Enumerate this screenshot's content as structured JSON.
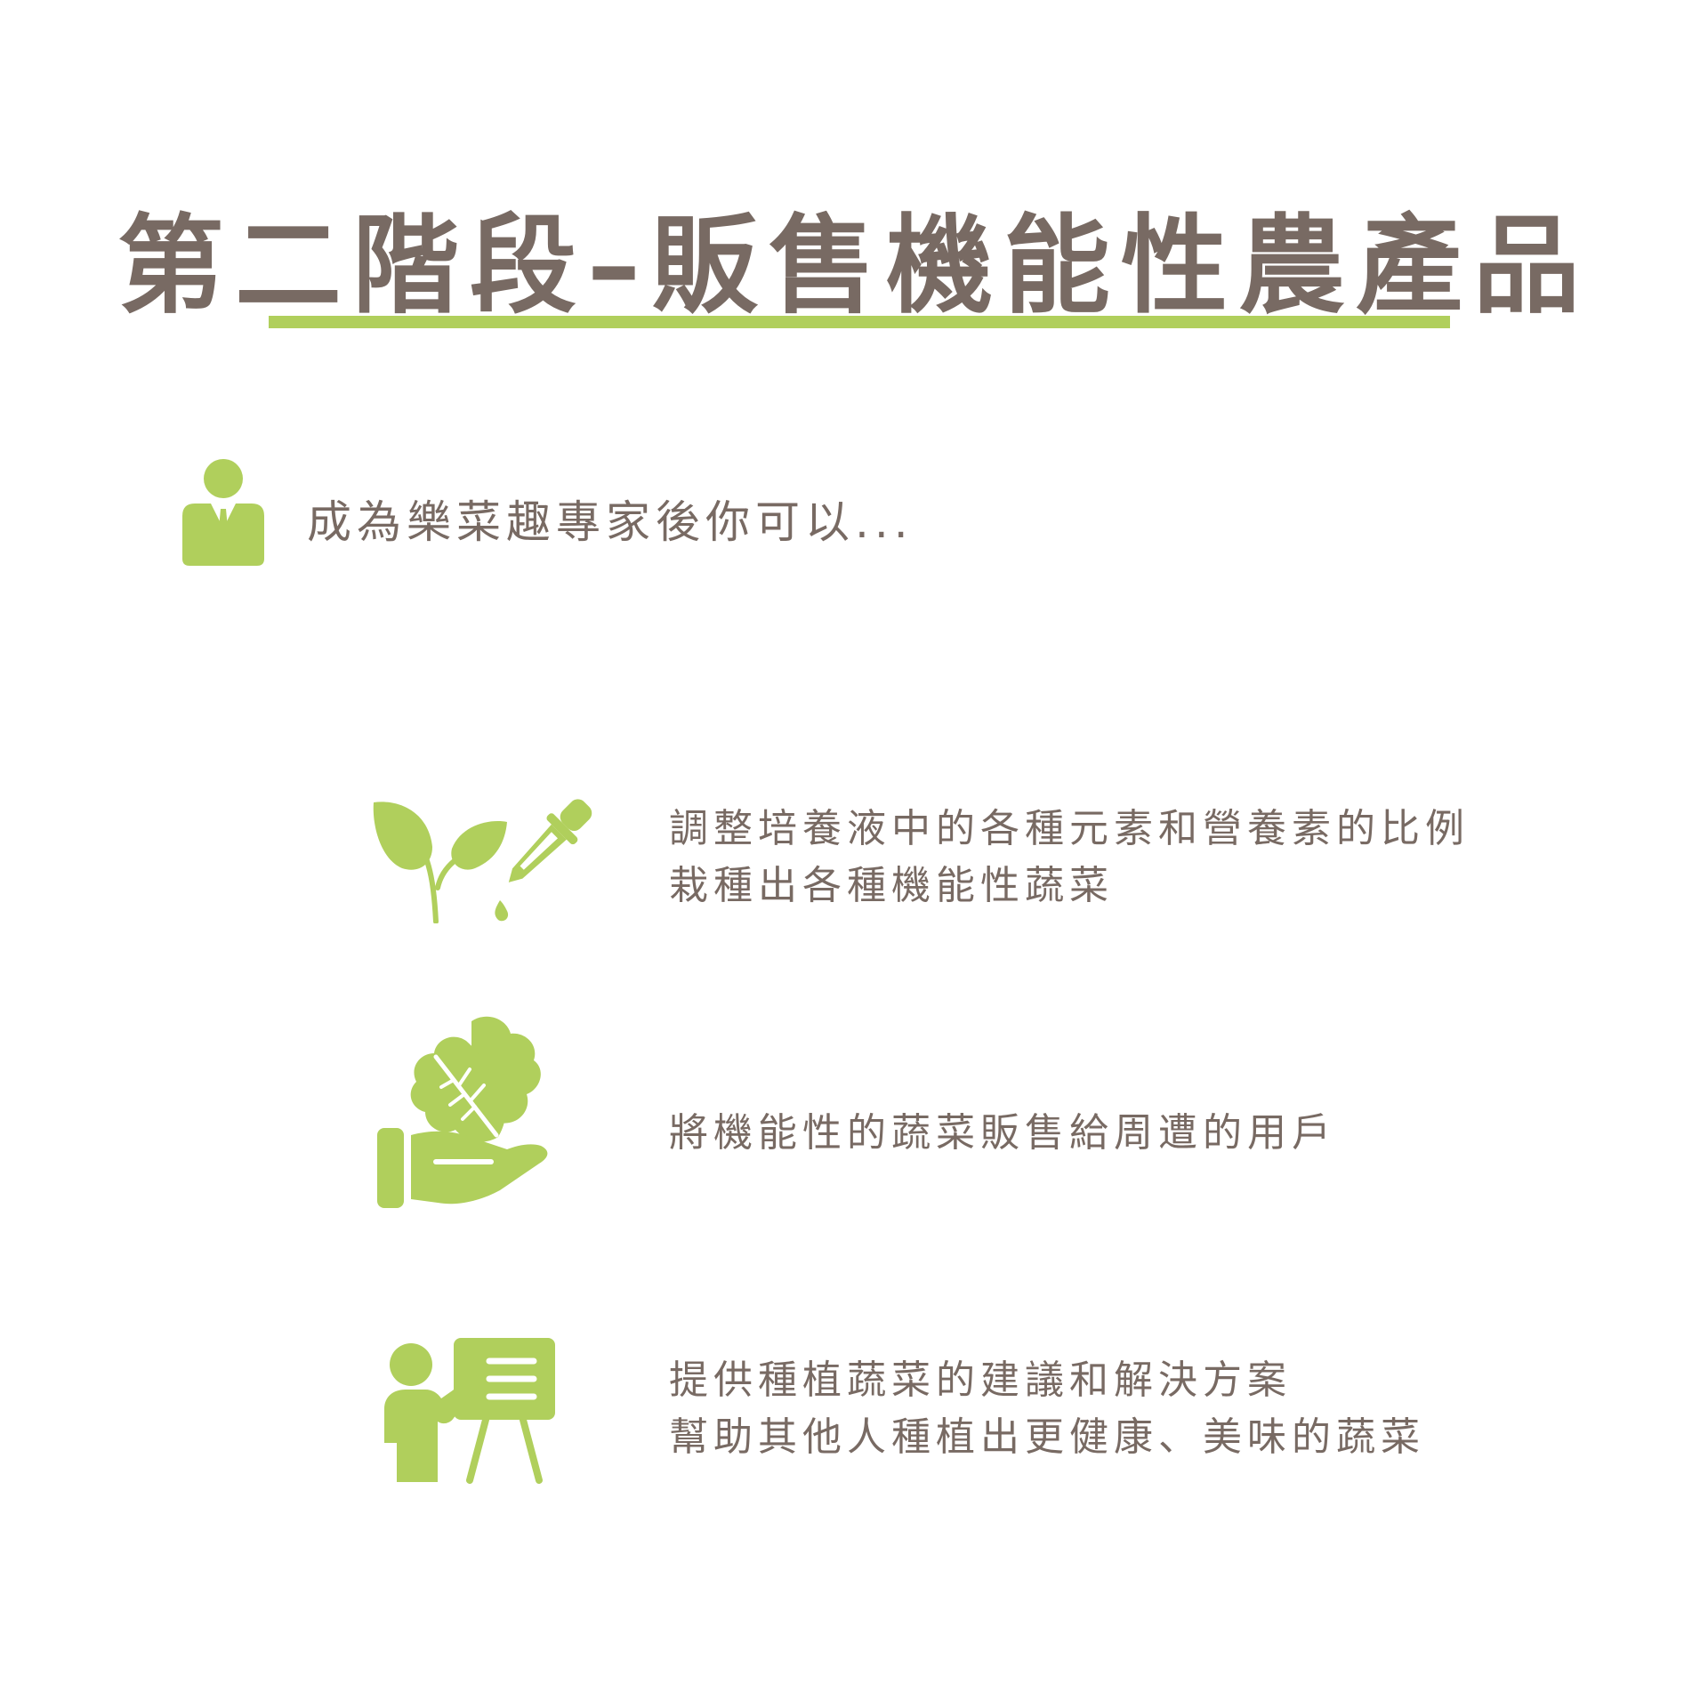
{
  "title": "第二階段–販售機能性農產品",
  "intro": {
    "text": "成為樂菜趣專家後你可以...",
    "icon": "businessman-icon"
  },
  "features": [
    {
      "icon": "sprout-dropper-icon",
      "lines": [
        "調整培養液中的各種元素和營養素的比例",
        "栽種出各種機能性蔬菜"
      ]
    },
    {
      "icon": "hand-lettuce-icon",
      "lines": [
        "將機能性的蔬菜販售給周遭的用戶"
      ]
    },
    {
      "icon": "presenter-board-icon",
      "lines": [
        "提供種植蔬菜的建議和解決方案",
        "幫助其他人種植出更健康、美味的蔬菜"
      ]
    }
  ],
  "colors": {
    "text": "#786a63",
    "accent": "#b0cf5c",
    "background": "#ffffff"
  }
}
